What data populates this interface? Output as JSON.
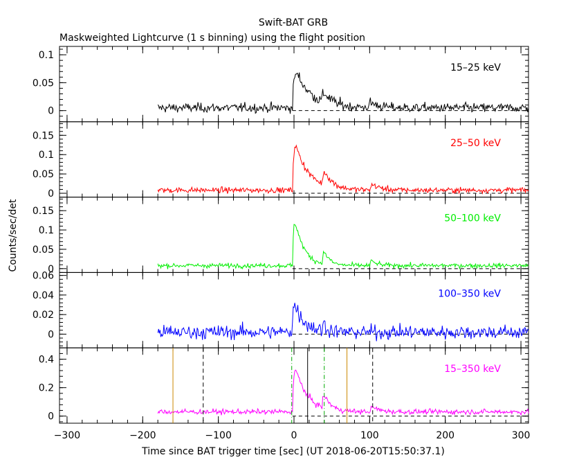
{
  "title": "Swift-BAT GRB",
  "subtitle": "Maskweighted Lightcurve (1 s binning) using the flight position",
  "ylabel": "Counts/sec/det",
  "xlabel": "Time since BAT trigger time [sec] (UT 2018-06-20T15:50:37.1)",
  "chart_data": {
    "type": "line",
    "title": "Swift-BAT GRB",
    "subtitle": "Maskweighted Lightcurve (1 s binning) using the flight position",
    "xlabel": "Time since BAT trigger time [sec] (UT 2018-06-20T15:50:37.1)",
    "ylabel": "Counts/sec/det",
    "xlim": [
      -310,
      310
    ],
    "xticks": [
      -300,
      -200,
      -100,
      0,
      100,
      200,
      300
    ],
    "x_tick_labels": [
      "−300",
      "−200",
      "−100",
      "0",
      "100",
      "200",
      "300"
    ],
    "data_range": [
      -180,
      310
    ],
    "grid": false,
    "panels": [
      {
        "band": "15–25 keV",
        "color": "#000000",
        "ylim": [
          -0.02,
          0.115
        ],
        "yticks": [
          0,
          0.05,
          0.1
        ],
        "ytick_labels": [
          "0",
          "0.05",
          "0.1"
        ],
        "baseline": 0.005,
        "noise": 0.007,
        "baseline_level": 0,
        "features": [
          {
            "t0": -2,
            "amp": 0.085,
            "rise": 2,
            "decay": 20
          },
          {
            "t0": 36,
            "amp": 0.03,
            "rise": 3,
            "decay": 10
          },
          {
            "t0": 97,
            "amp": 0.017,
            "rise": 4,
            "decay": 10
          }
        ]
      },
      {
        "band": "25–50 keV",
        "color": "#ff0000",
        "ylim": [
          -0.01,
          0.185
        ],
        "yticks": [
          0,
          0.05,
          0.1,
          0.15
        ],
        "ytick_labels": [
          "0",
          "0.05",
          "0.1",
          "0.15"
        ],
        "baseline": 0.008,
        "noise": 0.006,
        "baseline_level": 0,
        "features": [
          {
            "t0": -2,
            "amp": 0.15,
            "rise": 1.5,
            "decay": 18
          },
          {
            "t0": 37,
            "amp": 0.055,
            "rise": 2,
            "decay": 10
          },
          {
            "t0": 100,
            "amp": 0.025,
            "rise": 3,
            "decay": 10
          }
        ]
      },
      {
        "band": "50–100 keV",
        "color": "#00ee00",
        "ylim": [
          -0.01,
          0.185
        ],
        "yticks": [
          0,
          0.05,
          0.1,
          0.15
        ],
        "ytick_labels": [
          "0",
          "0.05",
          "0.1",
          "0.15"
        ],
        "baseline": 0.008,
        "noise": 0.005,
        "baseline_level": 0,
        "features": [
          {
            "t0": -2,
            "amp": 0.16,
            "rise": 1.5,
            "decay": 12
          },
          {
            "t0": 37,
            "amp": 0.055,
            "rise": 2,
            "decay": 7
          },
          {
            "t0": 100,
            "amp": 0.02,
            "rise": 2,
            "decay": 7
          }
        ]
      },
      {
        "band": "100–350 keV",
        "color": "#0000ff",
        "ylim": [
          -0.014,
          0.063
        ],
        "yticks": [
          0,
          0.02,
          0.04,
          0.06
        ],
        "ytick_labels": [
          "0",
          "0.02",
          "0.04",
          "0.06"
        ],
        "baseline": 0.002,
        "noise": 0.006,
        "baseline_level": 0,
        "features": [
          {
            "t0": -3,
            "amp": 0.038,
            "rise": 1.5,
            "decay": 14
          },
          {
            "t0": 37,
            "amp": 0.014,
            "rise": 2,
            "decay": 5
          }
        ]
      },
      {
        "band": "15–350 keV",
        "color": "#ff00ff",
        "ylim": [
          -0.05,
          0.48
        ],
        "yticks": [
          0,
          0.2,
          0.4
        ],
        "ytick_labels": [
          "0",
          "0.2",
          "0.4"
        ],
        "baseline": 0.03,
        "noise": 0.015,
        "baseline_level": 0,
        "features": [
          {
            "t0": -2,
            "amp": 0.4,
            "rise": 1.5,
            "decay": 16
          },
          {
            "t0": 37,
            "amp": 0.15,
            "rise": 2,
            "decay": 8
          },
          {
            "t0": 100,
            "amp": 0.06,
            "rise": 3,
            "decay": 9
          }
        ],
        "vlines": [
          {
            "x": -160,
            "color": "#cc8800",
            "style": "solid"
          },
          {
            "x": -120,
            "color": "#000000",
            "style": "dashed"
          },
          {
            "x": -3,
            "color": "#00aa00",
            "style": "dashdot"
          },
          {
            "x": 18,
            "color": "#000000",
            "style": "solid"
          },
          {
            "x": 40,
            "color": "#00aa00",
            "style": "dashdot"
          },
          {
            "x": 70,
            "color": "#cc8800",
            "style": "solid"
          },
          {
            "x": 104,
            "color": "#000000",
            "style": "dashed"
          }
        ]
      }
    ]
  }
}
